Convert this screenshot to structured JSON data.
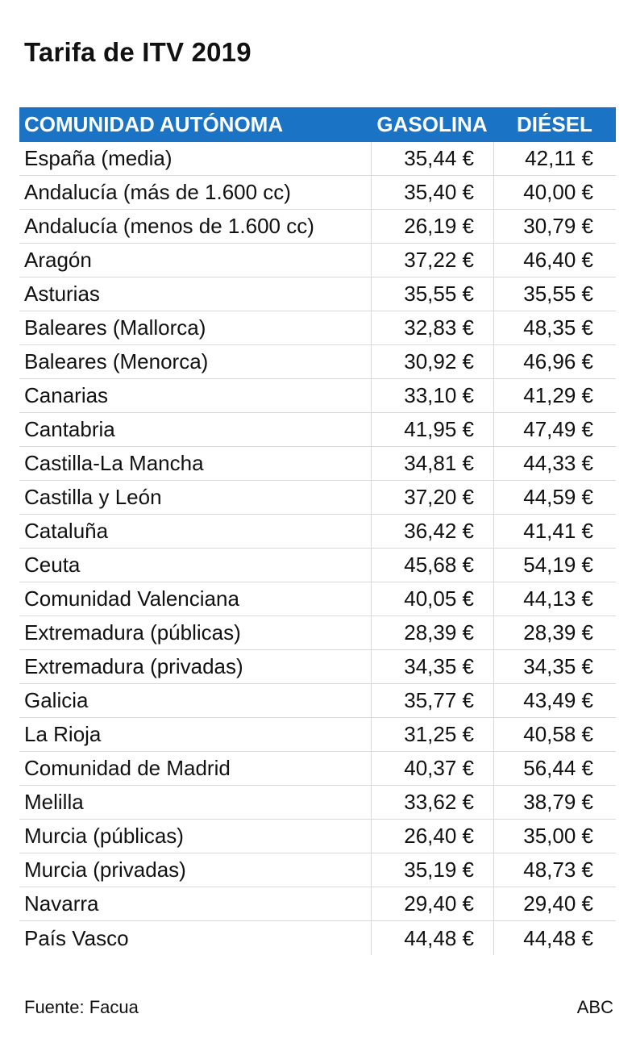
{
  "title": "Tarifa de ITV 2019",
  "header": {
    "col1": "COMUNIDAD AUTÓNOMA",
    "col2": "GASOLINA",
    "col3": "DIÉSEL"
  },
  "header_color": "#1a73c4",
  "rows": [
    {
      "region": "España (media)",
      "gasolina": "35,44 €",
      "diesel": "42,11 €"
    },
    {
      "region": "Andalucía (más de 1.600 cc)",
      "gasolina": "35,40 €",
      "diesel": "40,00 €"
    },
    {
      "region": "Andalucía (menos de 1.600 cc)",
      "gasolina": "26,19 €",
      "diesel": "30,79 €"
    },
    {
      "region": "Aragón",
      "gasolina": "37,22 €",
      "diesel": "46,40 €"
    },
    {
      "region": "Asturias",
      "gasolina": "35,55 €",
      "diesel": "35,55 €"
    },
    {
      "region": "Baleares (Mallorca)",
      "gasolina": "32,83 €",
      "diesel": "48,35 €"
    },
    {
      "region": "Baleares (Menorca)",
      "gasolina": "30,92 €",
      "diesel": "46,96 €"
    },
    {
      "region": "Canarias",
      "gasolina": "33,10 €",
      "diesel": "41,29 €"
    },
    {
      "region": "Cantabria",
      "gasolina": "41,95 €",
      "diesel": "47,49 €"
    },
    {
      "region": "Castilla-La Mancha",
      "gasolina": "34,81 €",
      "diesel": "44,33 €"
    },
    {
      "region": "Castilla y León",
      "gasolina": "37,20 €",
      "diesel": "44,59 €"
    },
    {
      "region": "Cataluña",
      "gasolina": "36,42 €",
      "diesel": "41,41 €"
    },
    {
      "region": "Ceuta",
      "gasolina": "45,68 €",
      "diesel": "54,19 €"
    },
    {
      "region": "Comunidad Valenciana",
      "gasolina": "40,05 €",
      "diesel": "44,13 €"
    },
    {
      "region": "Extremadura (públicas)",
      "gasolina": "28,39 €",
      "diesel": "28,39 €"
    },
    {
      "region": "Extremadura (privadas)",
      "gasolina": "34,35 €",
      "diesel": "34,35 €"
    },
    {
      "region": "Galicia",
      "gasolina": "35,77 €",
      "diesel": "43,49 €"
    },
    {
      "region": "La Rioja",
      "gasolina": "31,25 €",
      "diesel": "40,58 €"
    },
    {
      "region": "Comunidad de Madrid",
      "gasolina": "40,37 €",
      "diesel": "56,44 €"
    },
    {
      "region": "Melilla",
      "gasolina": "33,62 €",
      "diesel": "38,79 €"
    },
    {
      "region": "Murcia (públicas)",
      "gasolina": "26,40 €",
      "diesel": "35,00 €"
    },
    {
      "region": "Murcia (privadas)",
      "gasolina": "35,19 €",
      "diesel": "48,73 €"
    },
    {
      "region": "Navarra",
      "gasolina": "29,40 €",
      "diesel": "29,40 €"
    },
    {
      "region": "País Vasco",
      "gasolina": "44,48 €",
      "diesel": "44,48 €"
    }
  ],
  "footer": {
    "source": "Fuente: Facua",
    "credit": "ABC"
  }
}
